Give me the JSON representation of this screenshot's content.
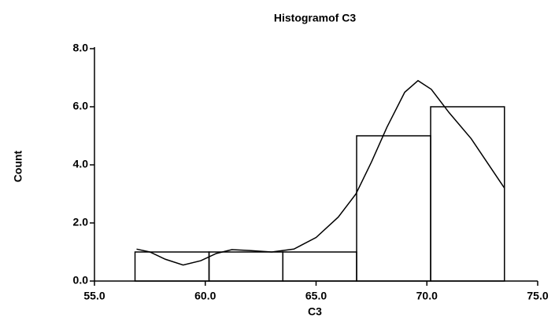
{
  "chart_data": {
    "type": "histogram",
    "title": "Histogramof C3",
    "xlabel": "C3",
    "ylabel": "Count",
    "bins": [
      56.83,
      60.17,
      63.5,
      66.83,
      70.17,
      73.5
    ],
    "counts": [
      1,
      1,
      1,
      5,
      6
    ],
    "curve": {
      "x": [
        56.9,
        57.5,
        58.2,
        59,
        59.8,
        60.5,
        61.2,
        62,
        63,
        64,
        65,
        66,
        66.8,
        67.5,
        68.2,
        69,
        69.6,
        70.2,
        71,
        72,
        73.5
      ],
      "y": [
        1.1,
        1.0,
        0.75,
        0.55,
        0.7,
        0.95,
        1.08,
        1.05,
        1.0,
        1.1,
        1.5,
        2.2,
        3.0,
        4.1,
        5.3,
        6.5,
        6.9,
        6.6,
        5.8,
        4.9,
        3.2
      ]
    },
    "color": "#000000",
    "xlim": [
      55,
      75
    ],
    "xticks": [
      {
        "value": 55,
        "label": "55.0"
      },
      {
        "value": 60,
        "label": "60.0"
      },
      {
        "value": 65,
        "label": "65.0"
      },
      {
        "value": 70,
        "label": "70.0"
      },
      {
        "value": 75,
        "label": "75.0"
      }
    ],
    "ylim": [
      0,
      8
    ],
    "yticks": [
      {
        "value": 0,
        "label": "0.0"
      },
      {
        "value": 2,
        "label": "2.0"
      },
      {
        "value": 4,
        "label": "4.0"
      },
      {
        "value": 6,
        "label": "6.0"
      },
      {
        "value": 8,
        "label": "8.0"
      }
    ]
  }
}
